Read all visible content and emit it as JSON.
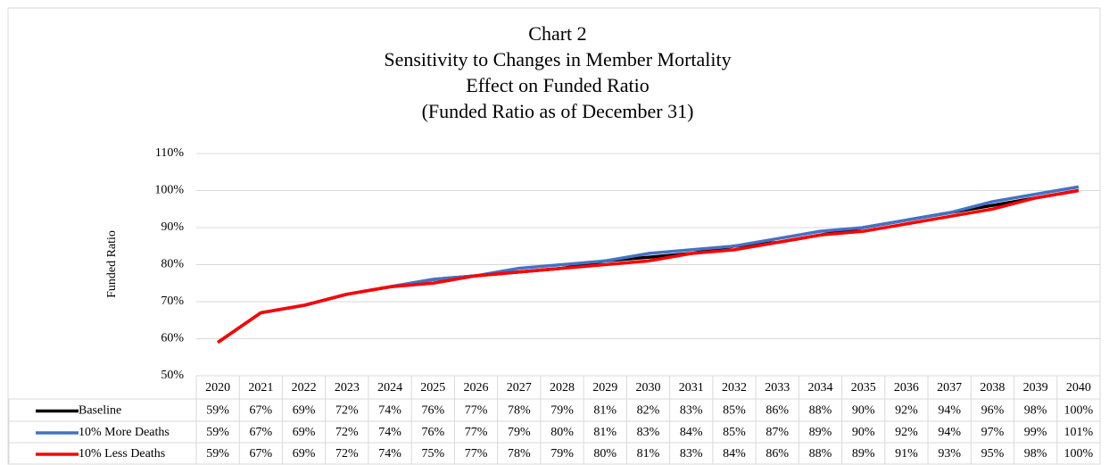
{
  "chart_data": {
    "type": "line",
    "title": [
      "Chart 2",
      "Sensitivity  to Changes in Member Mortality",
      "Effect on Funded Ratio",
      "(Funded Ratio as of December 31)"
    ],
    "y_label": "Funded Ratio",
    "categories": [
      "2020",
      "2021",
      "2022",
      "2023",
      "2024",
      "2025",
      "2026",
      "2027",
      "2028",
      "2029",
      "2030",
      "2031",
      "2032",
      "2033",
      "2034",
      "2035",
      "2036",
      "2037",
      "2038",
      "2039",
      "2040"
    ],
    "series": [
      {
        "name": "Baseline",
        "color": "#000000",
        "values": [
          59,
          67,
          69,
          72,
          74,
          76,
          77,
          78,
          79,
          81,
          82,
          83,
          85,
          86,
          88,
          90,
          92,
          94,
          96,
          98,
          100
        ],
        "value_labels": [
          "59%",
          "67%",
          "69%",
          "72%",
          "74%",
          "76%",
          "77%",
          "78%",
          "79%",
          "81%",
          "82%",
          "83%",
          "85%",
          "86%",
          "88%",
          "90%",
          "92%",
          "94%",
          "96%",
          "98%",
          "100%"
        ]
      },
      {
        "name": "10% More Deaths",
        "color": "#4472c4",
        "values": [
          59,
          67,
          69,
          72,
          74,
          76,
          77,
          79,
          80,
          81,
          83,
          84,
          85,
          87,
          89,
          90,
          92,
          94,
          97,
          99,
          101
        ],
        "value_labels": [
          "59%",
          "67%",
          "69%",
          "72%",
          "74%",
          "76%",
          "77%",
          "79%",
          "80%",
          "81%",
          "83%",
          "84%",
          "85%",
          "87%",
          "89%",
          "90%",
          "92%",
          "94%",
          "97%",
          "99%",
          "101%"
        ]
      },
      {
        "name": "10% Less Deaths",
        "color": "#ff0000",
        "values": [
          59,
          67,
          69,
          72,
          74,
          75,
          77,
          78,
          79,
          80,
          81,
          83,
          84,
          86,
          88,
          89,
          91,
          93,
          95,
          98,
          100
        ],
        "value_labels": [
          "59%",
          "67%",
          "69%",
          "72%",
          "74%",
          "75%",
          "77%",
          "78%",
          "79%",
          "80%",
          "81%",
          "83%",
          "84%",
          "86%",
          "88%",
          "89%",
          "91%",
          "93%",
          "95%",
          "98%",
          "100%"
        ]
      }
    ],
    "ylim": [
      50,
      110
    ],
    "yticks": [
      {
        "value": 50,
        "label": "50%"
      },
      {
        "value": 60,
        "label": "60%"
      },
      {
        "value": 70,
        "label": "70%"
      },
      {
        "value": 80,
        "label": "80%"
      },
      {
        "value": 90,
        "label": "90%"
      },
      {
        "value": 100,
        "label": "100%"
      },
      {
        "value": 110,
        "label": "110%"
      }
    ],
    "grid": true
  }
}
